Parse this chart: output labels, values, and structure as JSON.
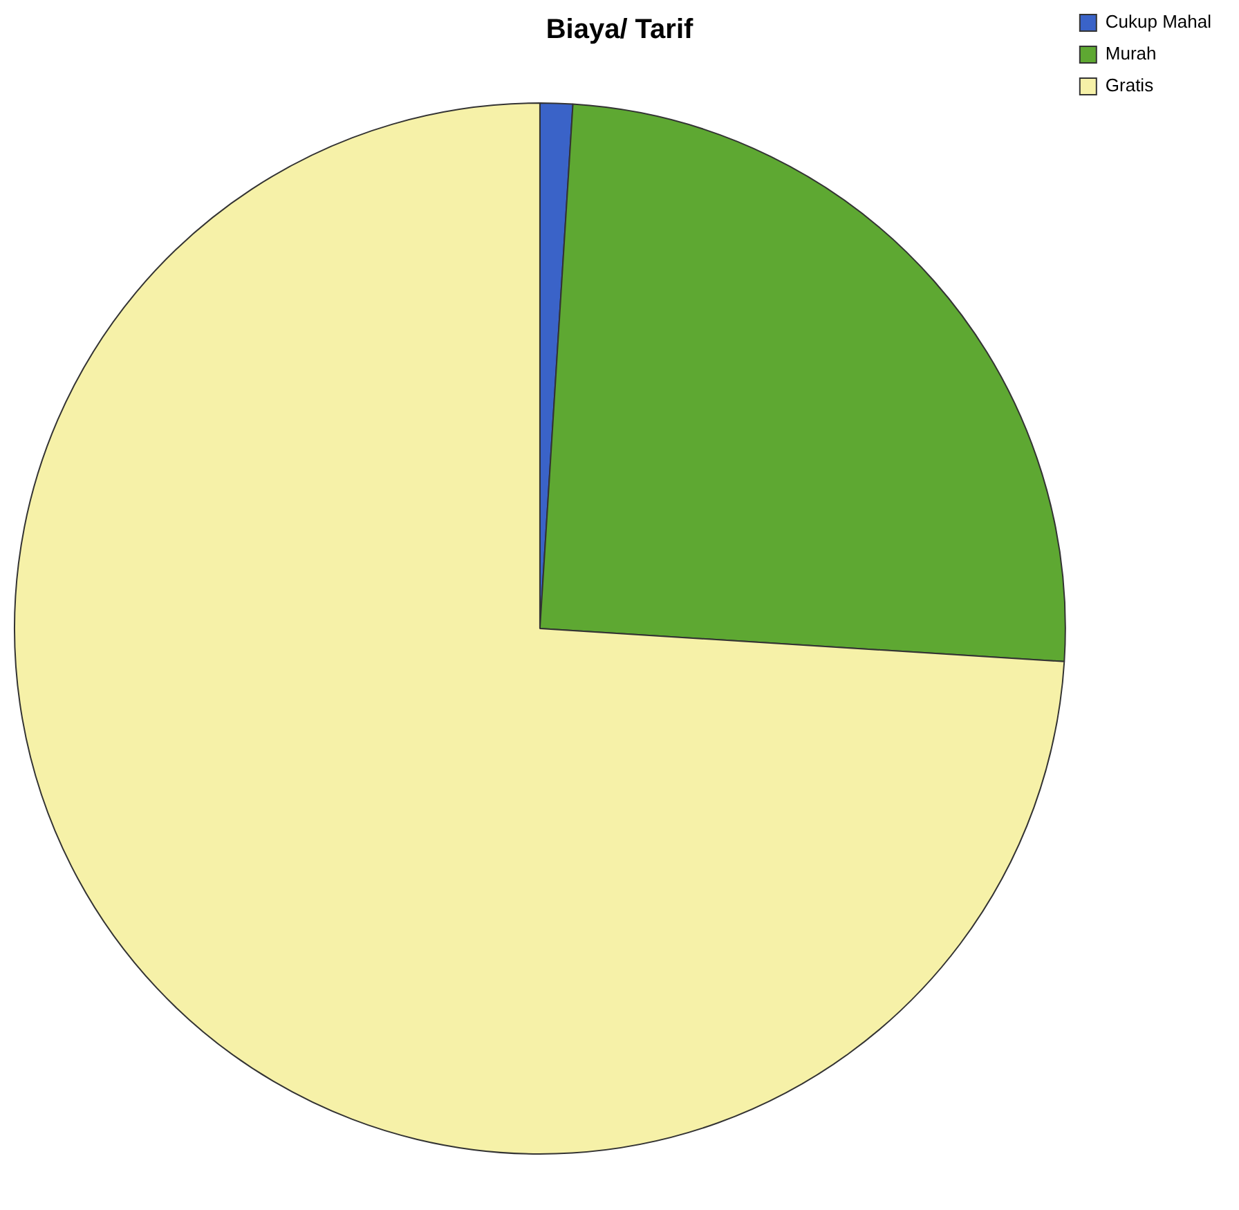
{
  "chart_data": {
    "type": "pie",
    "title": "Biaya/ Tarif",
    "categories": [
      "Cukup Mahal",
      "Murah",
      "Gratis"
    ],
    "values": [
      1,
      25,
      74
    ],
    "colors": [
      "#3a63c8",
      "#5ea832",
      "#f6f1a8"
    ],
    "legend": "top right"
  }
}
